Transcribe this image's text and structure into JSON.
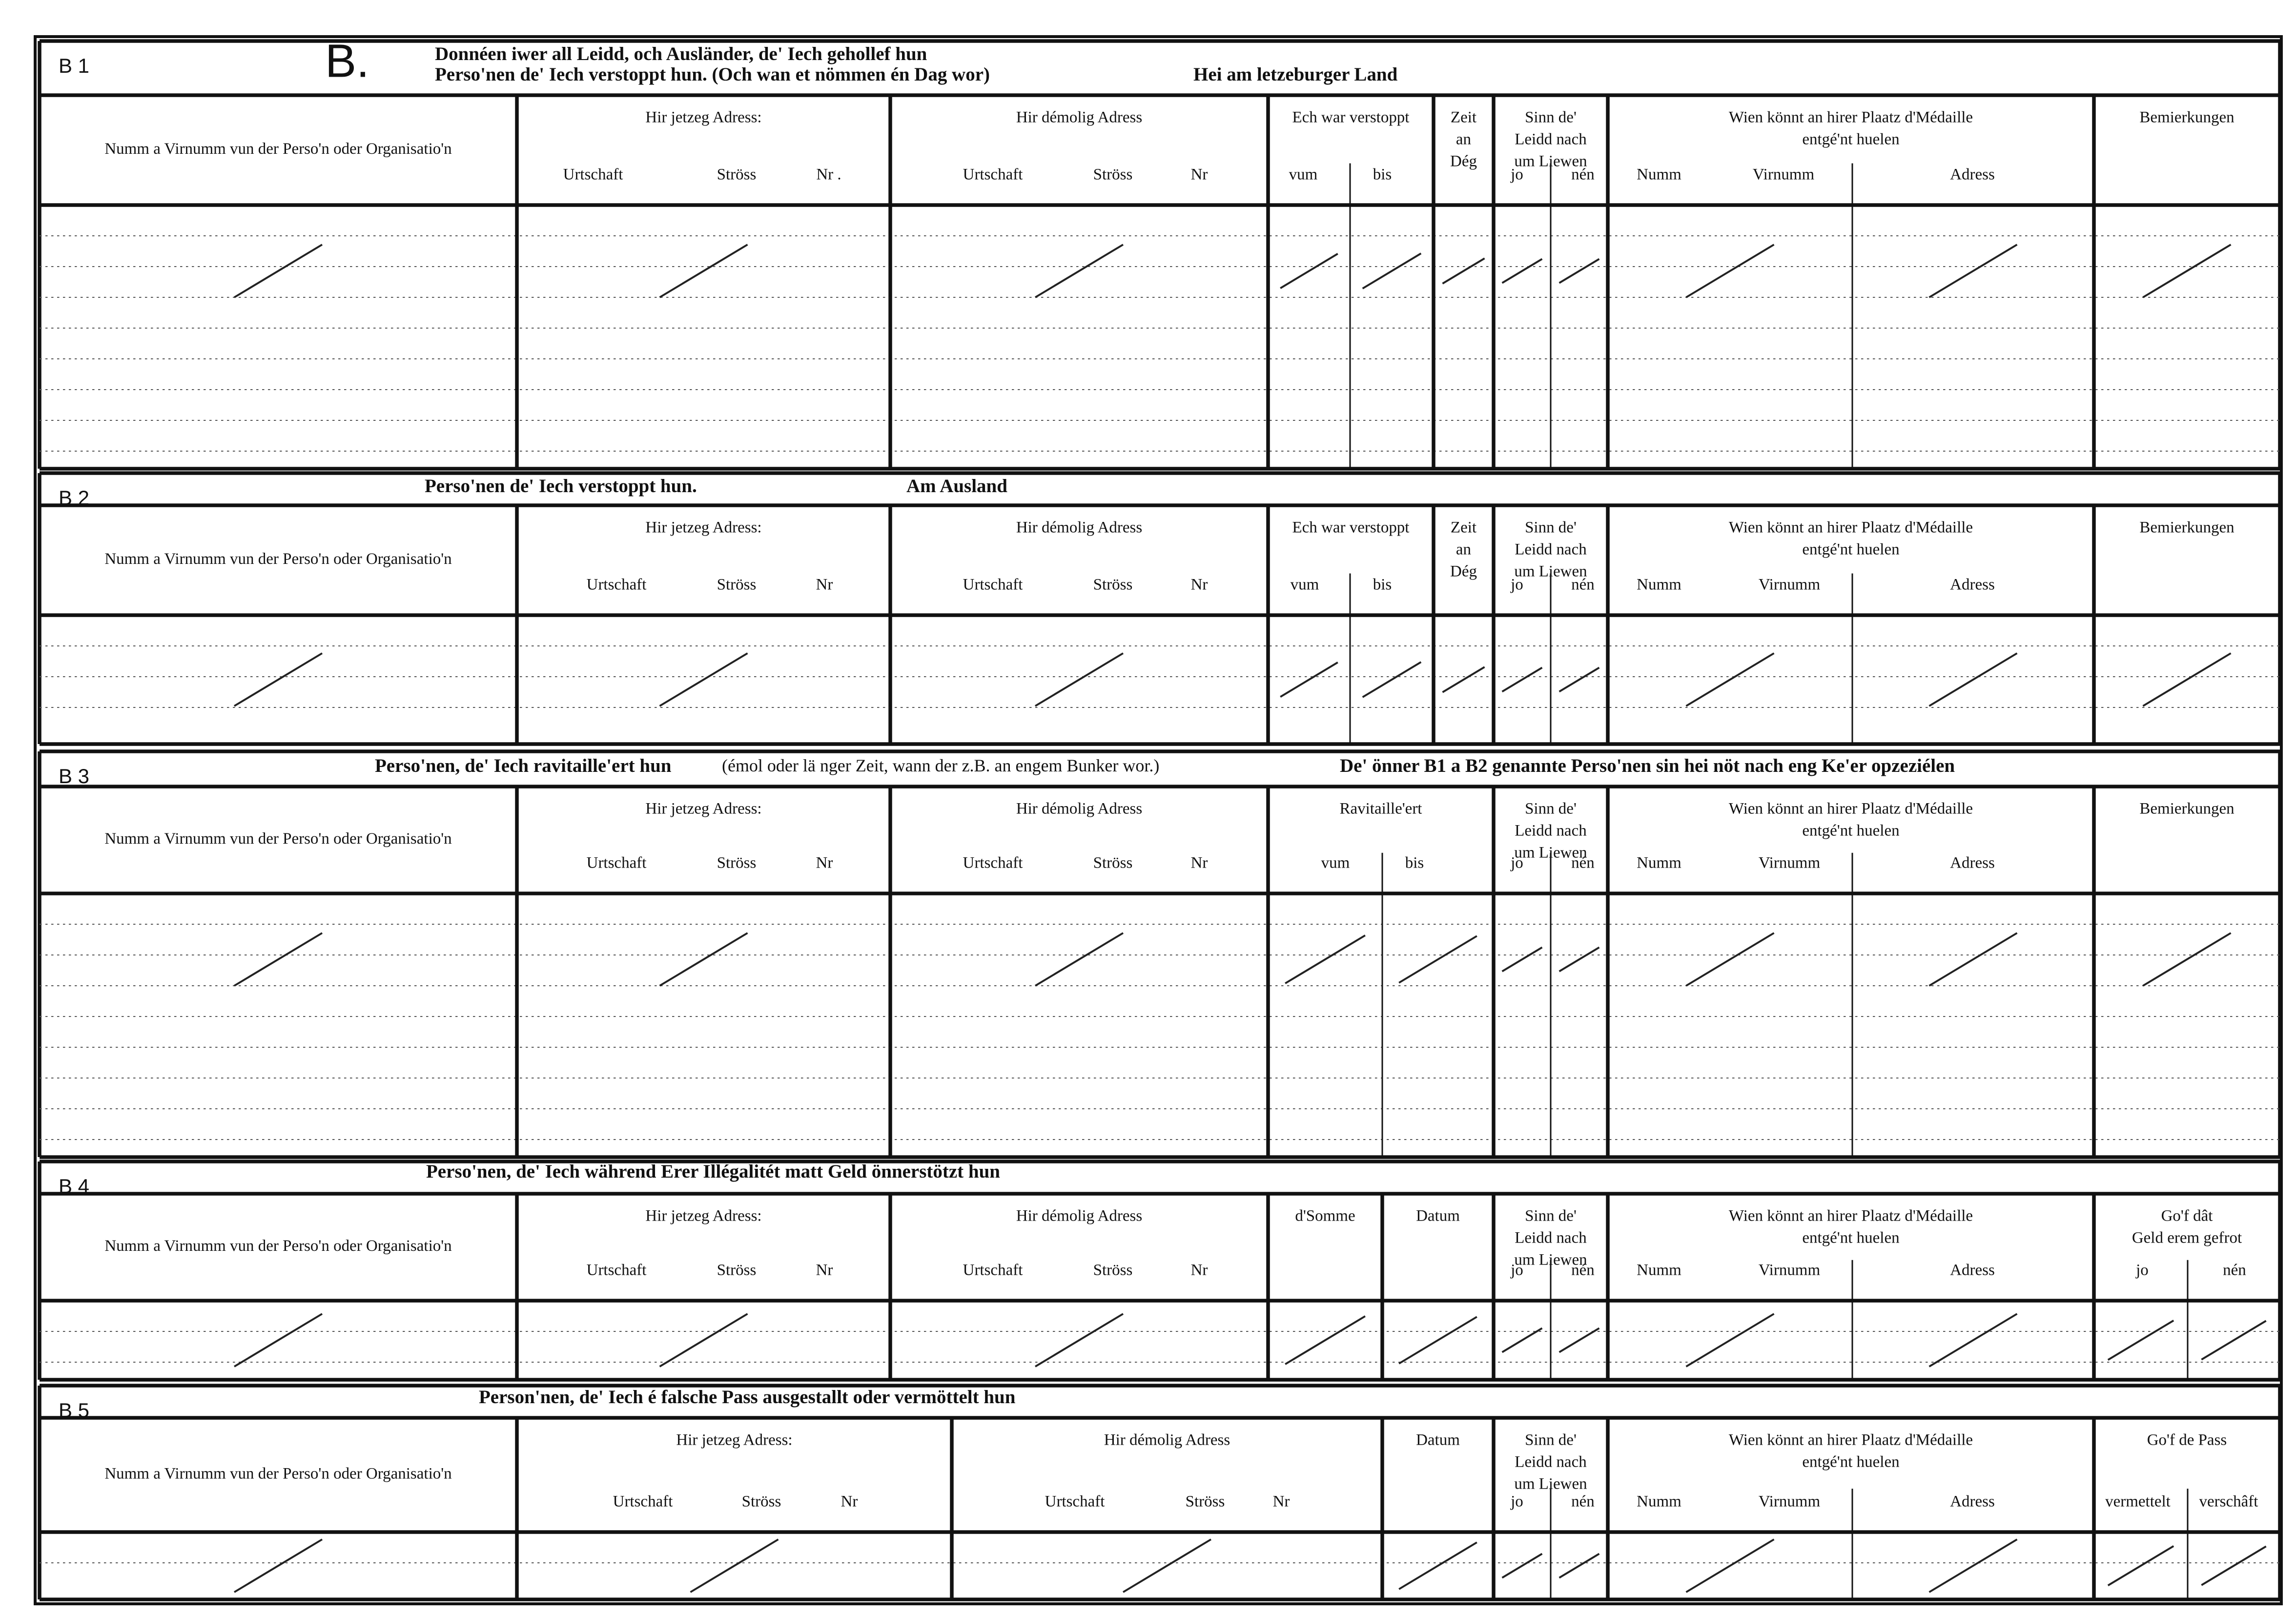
{
  "form_letter": "B.",
  "sections": [
    {
      "code": "B 1",
      "title": [
        "Donnéen iwer all Leidd, och Ausländer, de' Iech gehollef hun",
        "Perso'nen de' Iech verstoppt hun. (Och wan et nömmen én Dag wor)",
        "Hei am letzeburger Land"
      ],
      "columns": [
        {
          "label": [
            "Numm a Virnumm vun der Perso'n oder Organisatio'n"
          ]
        },
        {
          "label": [
            "Hir jetzeg Adress:"
          ],
          "sub": [
            "Urtschaft",
            "Ströss",
            "Nr ."
          ]
        },
        {
          "label": [
            "Hir démolig Adress"
          ],
          "sub": [
            "Urtschaft",
            "Ströss",
            "Nr"
          ]
        },
        {
          "label": [
            "Ech war verstoppt"
          ],
          "sub": [
            "vum",
            "bis"
          ]
        },
        {
          "label": [
            "Zeit",
            "an",
            "Dég"
          ]
        },
        {
          "label": [
            "Sinn de'",
            "Leidd nach",
            "um Liewen"
          ],
          "sub": [
            "jo",
            "nén"
          ]
        },
        {
          "label": [
            "Wien könnt an hirer Plaatz d'Médaille",
            "entgé'nt huelen"
          ],
          "sub": [
            "Numm",
            "Virnumm",
            "Adress"
          ]
        },
        {
          "label": [
            "Bemierkungen"
          ]
        }
      ]
    },
    {
      "code": "B 2",
      "title": [
        "Perso'nen de' Iech verstoppt hun.",
        "Am Ausland"
      ],
      "columns": [
        {
          "label": [
            "Numm a Virnumm vun der Perso'n oder Organisatio'n"
          ]
        },
        {
          "label": [
            "Hir jetzeg Adress:"
          ],
          "sub": [
            "Urtschaft",
            "Ströss",
            "Nr"
          ]
        },
        {
          "label": [
            "Hir démolig Adress"
          ],
          "sub": [
            "Urtschaft",
            "Ströss",
            "Nr"
          ]
        },
        {
          "label": [
            "Ech war verstoppt"
          ],
          "sub": [
            "vum",
            "bis"
          ]
        },
        {
          "label": [
            "Zeit",
            "an",
            "Dég"
          ]
        },
        {
          "label": [
            "Sinn de'",
            "Leidd nach",
            "um Liewen"
          ],
          "sub": [
            "jo",
            "nén"
          ]
        },
        {
          "label": [
            "Wien könnt an hirer Plaatz d'Médaille",
            "entgé'nt huelen"
          ],
          "sub": [
            "Numm",
            "Virnumm",
            "Adress"
          ]
        },
        {
          "label": [
            "Bemierkungen"
          ]
        }
      ]
    },
    {
      "code": "B 3",
      "title": [
        "Perso'nen, de' Iech ravitaille'ert hun",
        "(émol oder lä nger Zeit, wann der z.B. an engem Bunker wor.)",
        "De' önner B1 a B2 genannte Perso'nen sin hei nöt nach eng Ke'er opzeziélen"
      ],
      "columns": [
        {
          "label": [
            "Numm a Virnumm vun der Perso'n oder Organisatio'n"
          ]
        },
        {
          "label": [
            "Hir jetzeg Adress:"
          ],
          "sub": [
            "Urtschaft",
            "Ströss",
            "Nr"
          ]
        },
        {
          "label": [
            "Hir démolig Adress"
          ],
          "sub": [
            "Urtschaft",
            "Ströss",
            "Nr"
          ]
        },
        {
          "label": [
            "Ravitaille'ert"
          ],
          "sub": [
            "vum",
            "bis"
          ]
        },
        {
          "label": [
            "Sinn de'",
            "Leidd nach",
            "um Liewen"
          ],
          "sub": [
            "jo",
            "nén"
          ]
        },
        {
          "label": [
            "Wien könnt an hirer Plaatz d'Médaille",
            "entgé'nt huelen"
          ],
          "sub": [
            "Numm",
            "Virnumm",
            "Adress"
          ]
        },
        {
          "label": [
            "Bemierkungen"
          ]
        }
      ]
    },
    {
      "code": "B 4",
      "title": [
        "Perso'nen, de' Iech während Erer Illégalitét matt Geld önnerstötzt hun"
      ],
      "columns": [
        {
          "label": [
            "Numm a Virnumm vun der Perso'n oder Organisatio'n"
          ]
        },
        {
          "label": [
            "Hir jetzeg Adress:"
          ],
          "sub": [
            "Urtschaft",
            "Ströss",
            "Nr"
          ]
        },
        {
          "label": [
            "Hir démolig Adress"
          ],
          "sub": [
            "Urtschaft",
            "Ströss",
            "Nr"
          ]
        },
        {
          "label": [
            "d'Somme"
          ]
        },
        {
          "label": [
            "Datum"
          ]
        },
        {
          "label": [
            "Sinn de'",
            "Leidd nach",
            "um Liewen"
          ],
          "sub": [
            "jo",
            "nén"
          ]
        },
        {
          "label": [
            "Wien könnt an hirer Plaatz d'Médaille",
            "entgé'nt huelen"
          ],
          "sub": [
            "Numm",
            "Virnumm",
            "Adress"
          ]
        },
        {
          "label": [
            "Go'f dât",
            "Geld erem gefrot"
          ],
          "sub": [
            "jo",
            "nén"
          ]
        }
      ]
    },
    {
      "code": "B 5",
      "title": [
        "Person'nen, de' Iech é falsche Pass ausgestallt oder vermöttelt hun"
      ],
      "columns": [
        {
          "label": [
            "Numm a Virnumm vun der Perso'n oder Organisatio'n"
          ]
        },
        {
          "label": [
            "Hir jetzeg Adress:"
          ],
          "sub": [
            "Urtschaft",
            "Ströss",
            "Nr"
          ]
        },
        {
          "label": [
            "Hir démolig Adress"
          ],
          "sub": [
            "Urtschaft",
            "Ströss",
            "Nr"
          ]
        },
        {
          "label": [
            "Datum"
          ]
        },
        {
          "label": [
            "Sinn de'",
            "Leidd nach",
            "um Liewen"
          ],
          "sub": [
            "jo",
            "nén"
          ]
        },
        {
          "label": [
            "Wien könnt an hirer Plaatz d'Médaille",
            "entgé'nt huelen"
          ],
          "sub": [
            "Numm",
            "Virnumm",
            "Adress"
          ]
        },
        {
          "label": [
            "Go'f de Pass"
          ],
          "sub": [
            "vermettelt",
            "verschâft"
          ]
        }
      ]
    }
  ]
}
